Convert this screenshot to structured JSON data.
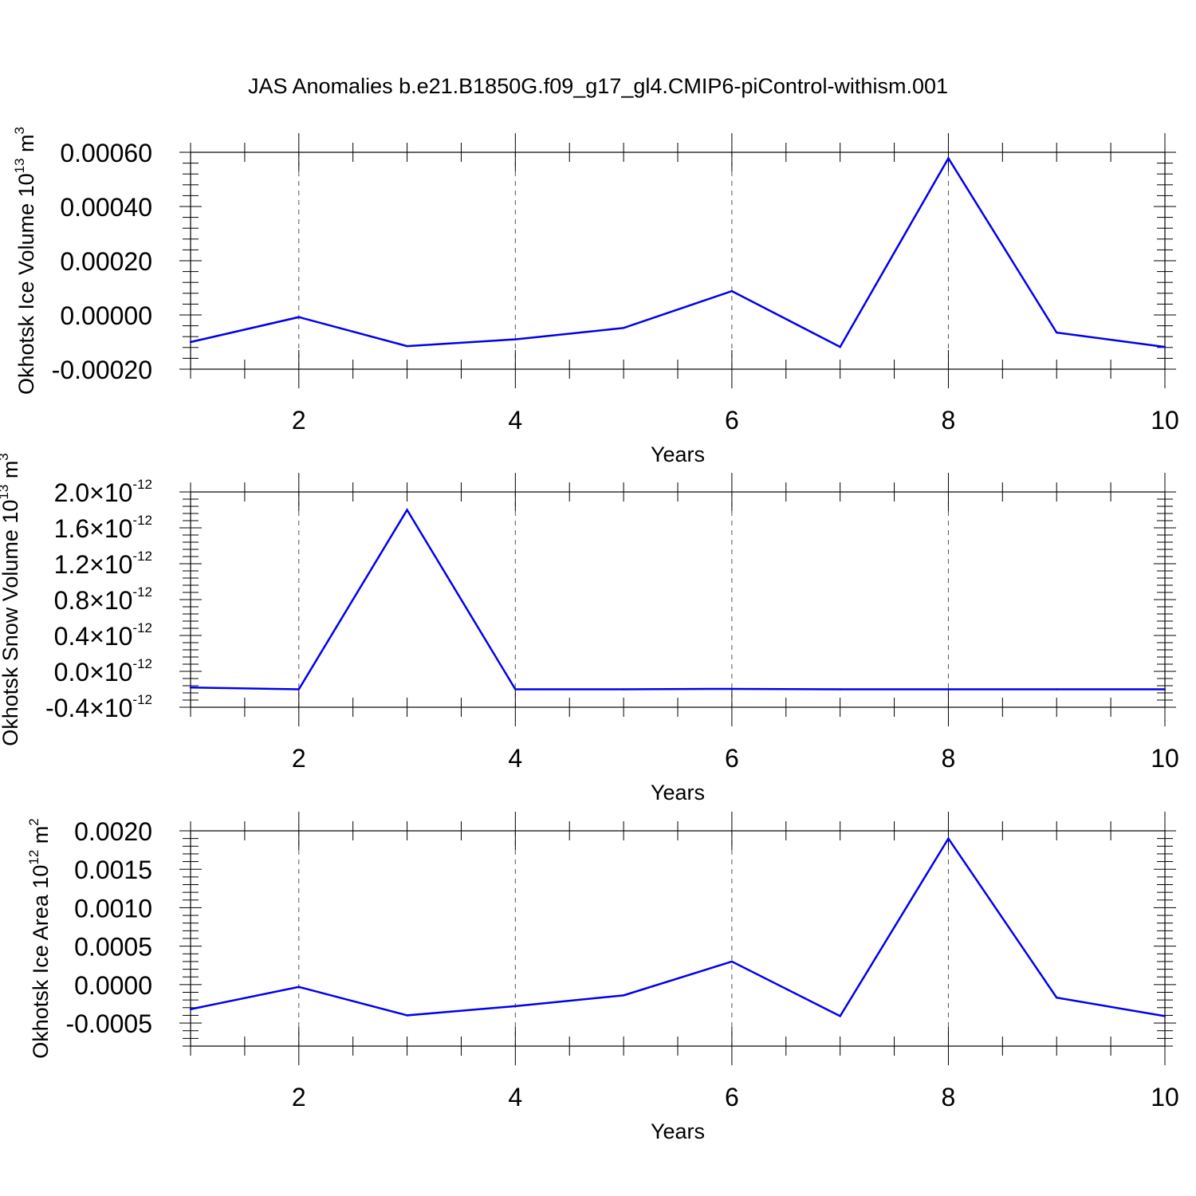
{
  "title": "JAS Anomalies b.e21.B1850G.f09_g17_gl4.CMIP6-piControl-withism.001",
  "colors": {
    "line": "#0000ee",
    "axis": "#000000",
    "grid": "#555555"
  },
  "chart_data": [
    {
      "type": "line",
      "title": "",
      "xlabel": "Years",
      "ylabel": "Okhotsk Ice Volume 10",
      "ylabel_exp": "13",
      "ylabel_unit": " m",
      "ylabel_unit_exp": "3",
      "xlim": [
        1,
        10
      ],
      "ylim": [
        -0.0002,
        0.0006
      ],
      "x_ticks": [
        2,
        4,
        6,
        8,
        10
      ],
      "y_ticks": [
        -0.0002,
        0.0,
        0.0002,
        0.0004,
        0.0006
      ],
      "y_tick_labels": [
        "-0.00020",
        "0.00000",
        "0.00020",
        "0.00040",
        "0.00060"
      ],
      "grid": "vertical dashed at major x ticks",
      "series": [
        {
          "x": [
            1,
            2,
            3,
            4,
            5,
            6,
            7,
            8,
            9,
            10
          ],
          "values": [
            -0.0001,
            -8e-06,
            -0.000115,
            -9e-05,
            -4.8e-05,
            8.8e-05,
            -0.000118,
            0.000578,
            -6.5e-05,
            -0.000118
          ]
        }
      ]
    },
    {
      "type": "line",
      "title": "",
      "xlabel": "Years",
      "ylabel": "Okhotsk Snow Volume 10",
      "ylabel_exp": "13",
      "ylabel_unit": " m",
      "ylabel_unit_exp": "3",
      "xlim": [
        1,
        10
      ],
      "ylim": [
        -4e-13,
        2e-12
      ],
      "x_ticks": [
        2,
        4,
        6,
        8,
        10
      ],
      "y_ticks": [
        -4e-13,
        0,
        4e-13,
        8e-13,
        1.2e-12,
        1.6e-12,
        2e-12
      ],
      "y_tick_mantissas": [
        "-0.4",
        "0.0",
        "0.4",
        "0.8",
        "1.2",
        "1.6",
        "2.0"
      ],
      "y_tick_times": "×10",
      "y_tick_exponent": "-12",
      "grid": "vertical dashed at major x ticks",
      "series": [
        {
          "x": [
            1,
            2,
            3,
            4,
            5,
            6,
            7,
            8,
            9,
            10
          ],
          "values": [
            -1.8e-13,
            -2e-13,
            1.8e-12,
            -2e-13,
            -2e-13,
            -1.95e-13,
            -2e-13,
            -2e-13,
            -2e-13,
            -2e-13
          ]
        }
      ]
    },
    {
      "type": "line",
      "title": "",
      "xlabel": "Years",
      "ylabel": "Okhotsk Ice Area 10",
      "ylabel_exp": "12",
      "ylabel_unit": " m",
      "ylabel_unit_exp": "2",
      "xlim": [
        1,
        10
      ],
      "ylim": [
        -0.0008,
        0.002
      ],
      "x_ticks": [
        2,
        4,
        6,
        8,
        10
      ],
      "y_ticks": [
        -0.0005,
        0.0,
        0.0005,
        0.001,
        0.0015,
        0.002
      ],
      "y_tick_labels": [
        "-0.0005",
        "0.0000",
        "0.0005",
        "0.0010",
        "0.0015",
        "0.0020"
      ],
      "grid": "vertical dashed at major x ticks",
      "series": [
        {
          "x": [
            1,
            2,
            3,
            4,
            5,
            6,
            7,
            8,
            9,
            10
          ],
          "values": [
            -0.00032,
            -3e-05,
            -0.0004,
            -0.00028,
            -0.00014,
            0.0003,
            -0.00041,
            0.0019,
            -0.00017,
            -0.00041
          ]
        }
      ]
    }
  ]
}
